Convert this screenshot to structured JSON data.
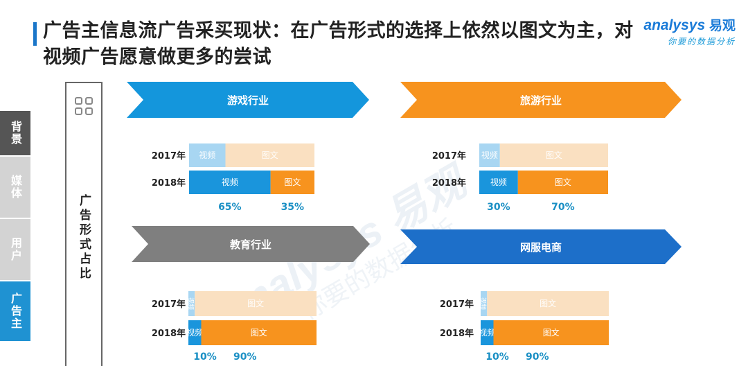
{
  "title": "广告主信息流广告采买现状：在广告形式的选择上依然以图文为主，对视频广告愿意做更多的尝试",
  "logo": {
    "brand": "nalysys",
    "brand_prefix": "a",
    "brand_cn": "易观",
    "tagline": "你要的数据分析"
  },
  "side_nav": [
    {
      "label": "背景"
    },
    {
      "label": "媒体"
    },
    {
      "label": "用户"
    },
    {
      "label": "广告主"
    }
  ],
  "side_label": "广告形式占比",
  "watermark": {
    "brand": "nalysys 易观",
    "tagline": "你要的数据分析"
  },
  "colors": {
    "video_2017": "#a8d6f2",
    "text_2017": "#fae0c1",
    "video_2018": "#1a95dc",
    "text_2018": "#f7931e",
    "arrow_blue": "#1496dc",
    "arrow_orange": "#f7931e",
    "arrow_gray": "#7f7f7f",
    "arrow_navy": "#1d6fc9",
    "pct_text": "#1a8fc4"
  },
  "chart_data": [
    {
      "type": "bar",
      "title": "游戏行业",
      "categories": [
        "2017年",
        "2018年"
      ],
      "series": [
        {
          "name": "视频",
          "values": [
            29,
            65
          ]
        },
        {
          "name": "图文",
          "values": [
            71,
            35
          ]
        }
      ],
      "percent_labels": [
        "65%",
        "35%"
      ],
      "stacked": true,
      "orientation": "horizontal",
      "arrow_color": "arrow_blue"
    },
    {
      "type": "bar",
      "title": "旅游行业",
      "categories": [
        "2017年",
        "2018年"
      ],
      "series": [
        {
          "name": "视频",
          "values": [
            16,
            30
          ]
        },
        {
          "name": "图文",
          "values": [
            84,
            70
          ]
        }
      ],
      "percent_labels": [
        "30%",
        "70%"
      ],
      "stacked": true,
      "orientation": "horizontal",
      "arrow_color": "arrow_orange"
    },
    {
      "type": "bar",
      "title": "教育行业",
      "categories": [
        "2017年",
        "2018年"
      ],
      "series": [
        {
          "name": "视频",
          "values": [
            5,
            10
          ]
        },
        {
          "name": "图文",
          "values": [
            95,
            90
          ]
        }
      ],
      "percent_labels": [
        "10%",
        "90%"
      ],
      "stacked": true,
      "orientation": "horizontal",
      "arrow_color": "arrow_gray"
    },
    {
      "type": "bar",
      "title": "网服电商",
      "categories": [
        "2017年",
        "2018年"
      ],
      "series": [
        {
          "name": "视频",
          "values": [
            5,
            10
          ]
        },
        {
          "name": "图文",
          "values": [
            95,
            90
          ]
        }
      ],
      "percent_labels": [
        "10%",
        "90%"
      ],
      "stacked": true,
      "orientation": "horizontal",
      "arrow_color": "arrow_navy"
    }
  ]
}
